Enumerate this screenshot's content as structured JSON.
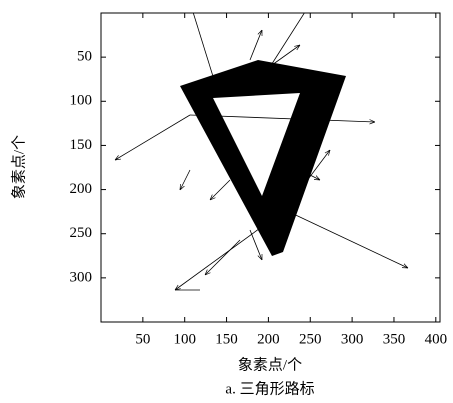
{
  "chart_data": {
    "type": "image",
    "xlabel": "象素点/个",
    "ylabel": "象素点/个",
    "caption": "a. 三角形路标",
    "xlim": [
      0,
      405
    ],
    "ylim": [
      350,
      0
    ],
    "xticks": [
      50,
      100,
      150,
      200,
      250,
      300,
      350,
      400
    ],
    "yticks": [
      50,
      100,
      150,
      200,
      250,
      300
    ]
  }
}
